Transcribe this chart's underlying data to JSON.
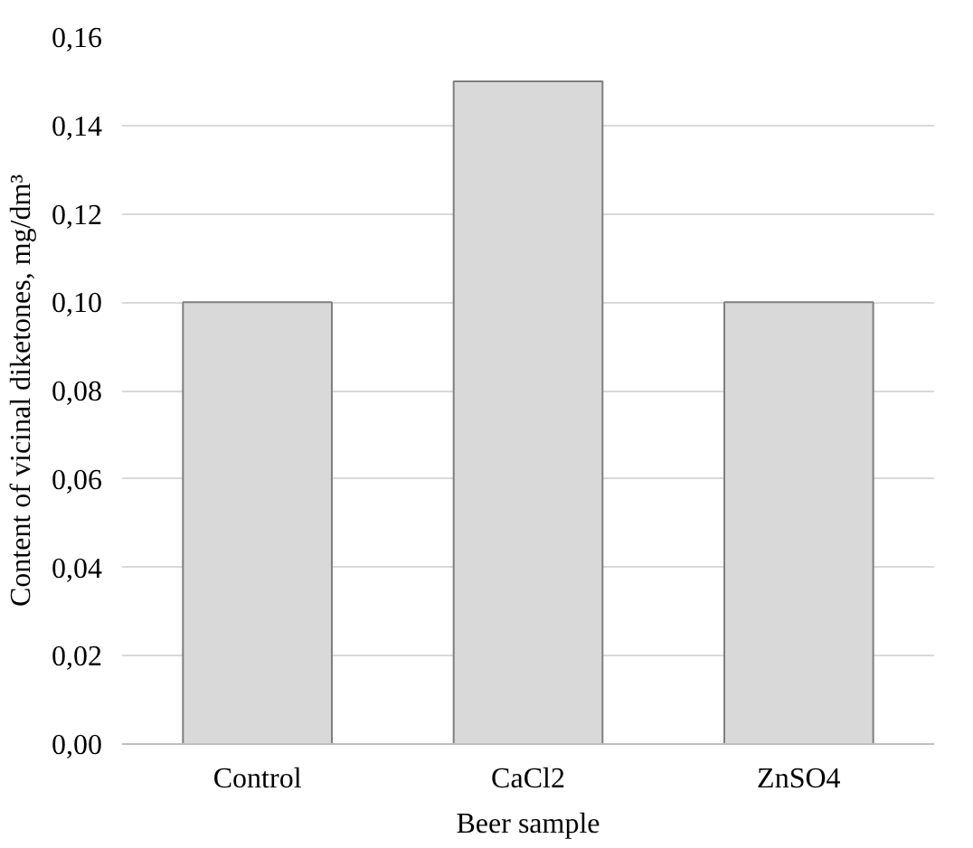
{
  "chart_data": {
    "type": "bar",
    "xlabel": "Beer sample",
    "ylabel": "Content of vicinal diketones, mg/dm³",
    "categories": [
      "Control",
      "CaCl2",
      "ZnSO4"
    ],
    "values": [
      0.1,
      0.15,
      0.1
    ],
    "color": "#d9d9d9",
    "ylim": [
      0,
      0.16
    ],
    "yticks": [
      {
        "value": 0,
        "label": "0,00"
      },
      {
        "value": 0.02,
        "label": "0,02"
      },
      {
        "value": 0.04,
        "label": "0,04"
      },
      {
        "value": 0.06,
        "label": "0,06"
      },
      {
        "value": 0.08,
        "label": "0,08"
      },
      {
        "value": 0.1,
        "label": "0,10"
      },
      {
        "value": 0.12,
        "label": "0,12"
      },
      {
        "value": 0.14,
        "label": "0,14"
      },
      {
        "value": 0.16,
        "label": "0,16"
      }
    ],
    "grid": "y"
  }
}
